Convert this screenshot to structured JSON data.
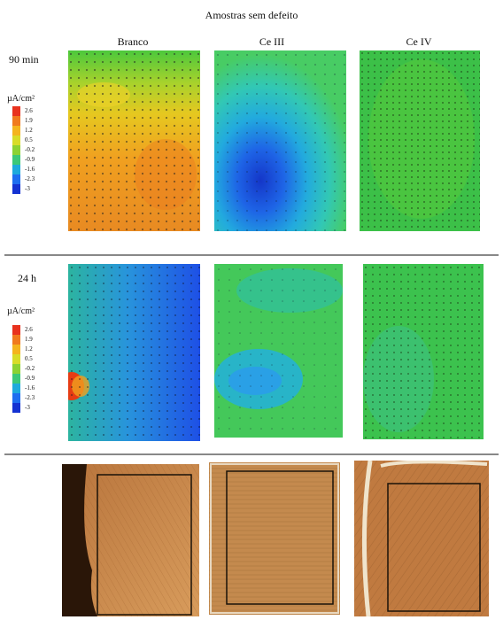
{
  "figure": {
    "title": "Amostras sem defeito",
    "columns": [
      "Branco",
      "Ce III",
      "Ce IV"
    ],
    "rows": [
      {
        "label": "90 min",
        "unit": "µA/cm²",
        "scale": [
          "2.6",
          "1.9",
          "1.2",
          "0.5",
          "-0.2",
          "-0.9",
          "-1.6",
          "-2.3",
          "-3"
        ]
      },
      {
        "label": "24 h",
        "unit": "µA/cm²",
        "scale": [
          "2.6",
          "1.9",
          "1.2",
          "0.5",
          "-0.2",
          "-0.9",
          "-1.6",
          "-2.3",
          "-3"
        ]
      }
    ],
    "scale_colors": [
      "#e8321e",
      "#f07a1e",
      "#f4b41e",
      "#d8dc28",
      "#8cd232",
      "#3cc878",
      "#1eaadc",
      "#1e6ef0",
      "#1432d2"
    ]
  }
}
